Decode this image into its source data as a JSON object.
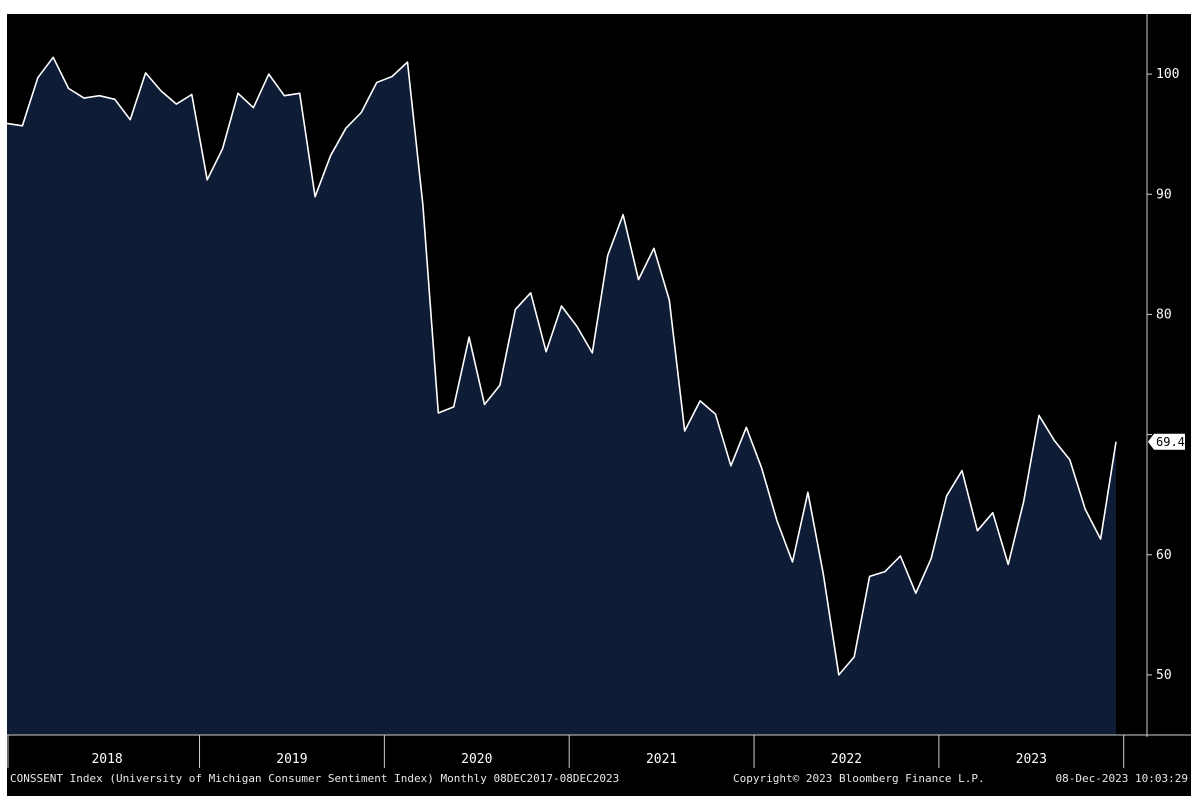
{
  "chart_data": {
    "type": "area",
    "series": [
      {
        "name": "CONSSENT Index",
        "values": [
          {
            "x": "2017-12",
            "y": 95.9
          },
          {
            "x": "2018-01",
            "y": 95.7
          },
          {
            "x": "2018-02",
            "y": 99.7
          },
          {
            "x": "2018-03",
            "y": 101.4
          },
          {
            "x": "2018-04",
            "y": 98.8
          },
          {
            "x": "2018-05",
            "y": 98.0
          },
          {
            "x": "2018-06",
            "y": 98.2
          },
          {
            "x": "2018-07",
            "y": 97.9
          },
          {
            "x": "2018-08",
            "y": 96.2
          },
          {
            "x": "2018-09",
            "y": 100.1
          },
          {
            "x": "2018-10",
            "y": 98.6
          },
          {
            "x": "2018-11",
            "y": 97.5
          },
          {
            "x": "2018-12",
            "y": 98.3
          },
          {
            "x": "2019-01",
            "y": 91.2
          },
          {
            "x": "2019-02",
            "y": 93.8
          },
          {
            "x": "2019-03",
            "y": 98.4
          },
          {
            "x": "2019-04",
            "y": 97.2
          },
          {
            "x": "2019-05",
            "y": 100.0
          },
          {
            "x": "2019-06",
            "y": 98.2
          },
          {
            "x": "2019-07",
            "y": 98.4
          },
          {
            "x": "2019-08",
            "y": 89.8
          },
          {
            "x": "2019-09",
            "y": 93.2
          },
          {
            "x": "2019-10",
            "y": 95.5
          },
          {
            "x": "2019-11",
            "y": 96.8
          },
          {
            "x": "2019-12",
            "y": 99.3
          },
          {
            "x": "2020-01",
            "y": 99.8
          },
          {
            "x": "2020-02",
            "y": 101.0
          },
          {
            "x": "2020-03",
            "y": 89.1
          },
          {
            "x": "2020-04",
            "y": 71.8
          },
          {
            "x": "2020-05",
            "y": 72.3
          },
          {
            "x": "2020-06",
            "y": 78.1
          },
          {
            "x": "2020-07",
            "y": 72.5
          },
          {
            "x": "2020-08",
            "y": 74.1
          },
          {
            "x": "2020-09",
            "y": 80.4
          },
          {
            "x": "2020-10",
            "y": 81.8
          },
          {
            "x": "2020-11",
            "y": 76.9
          },
          {
            "x": "2020-12",
            "y": 80.7
          },
          {
            "x": "2021-01",
            "y": 79.0
          },
          {
            "x": "2021-02",
            "y": 76.8
          },
          {
            "x": "2021-03",
            "y": 84.9
          },
          {
            "x": "2021-04",
            "y": 88.3
          },
          {
            "x": "2021-05",
            "y": 82.9
          },
          {
            "x": "2021-06",
            "y": 85.5
          },
          {
            "x": "2021-07",
            "y": 81.2
          },
          {
            "x": "2021-08",
            "y": 70.3
          },
          {
            "x": "2021-09",
            "y": 72.8
          },
          {
            "x": "2021-10",
            "y": 71.7
          },
          {
            "x": "2021-11",
            "y": 67.4
          },
          {
            "x": "2021-12",
            "y": 70.6
          },
          {
            "x": "2022-01",
            "y": 67.2
          },
          {
            "x": "2022-02",
            "y": 62.8
          },
          {
            "x": "2022-03",
            "y": 59.4
          },
          {
            "x": "2022-04",
            "y": 65.2
          },
          {
            "x": "2022-05",
            "y": 58.4
          },
          {
            "x": "2022-06",
            "y": 50.0
          },
          {
            "x": "2022-07",
            "y": 51.5
          },
          {
            "x": "2022-08",
            "y": 58.2
          },
          {
            "x": "2022-09",
            "y": 58.6
          },
          {
            "x": "2022-10",
            "y": 59.9
          },
          {
            "x": "2022-11",
            "y": 56.8
          },
          {
            "x": "2022-12",
            "y": 59.7
          },
          {
            "x": "2023-01",
            "y": 64.9
          },
          {
            "x": "2023-02",
            "y": 67.0
          },
          {
            "x": "2023-03",
            "y": 62.0
          },
          {
            "x": "2023-04",
            "y": 63.5
          },
          {
            "x": "2023-05",
            "y": 59.2
          },
          {
            "x": "2023-06",
            "y": 64.4
          },
          {
            "x": "2023-07",
            "y": 71.6
          },
          {
            "x": "2023-08",
            "y": 69.5
          },
          {
            "x": "2023-09",
            "y": 67.9
          },
          {
            "x": "2023-10",
            "y": 63.8
          },
          {
            "x": "2023-11",
            "y": 61.3
          },
          {
            "x": "2023-12",
            "y": 69.4
          }
        ]
      }
    ],
    "x_tick_labels": [
      "2018",
      "2019",
      "2020",
      "2021",
      "2022",
      "2023"
    ],
    "y_ticks": [
      50,
      60,
      70,
      80,
      90,
      100
    ],
    "y_tick_labels": [
      "50",
      "60",
      "",
      "80",
      "90",
      "100"
    ],
    "ylim": [
      45,
      105
    ],
    "last_value_label": "69.4",
    "grid": false,
    "title": "",
    "xlabel": "",
    "ylabel": "",
    "colors": {
      "background": "#000000",
      "fill": "#0f1c36",
      "line": "#ffffff",
      "axis": "#cfcfcf",
      "text": "#ffffff"
    }
  },
  "footer": {
    "left": "CONSSENT Index (University of Michigan Consumer Sentiment Index)  Monthly 08DEC2017-08DEC2023",
    "center": "Copyright© 2023 Bloomberg Finance L.P.",
    "right": "08-Dec-2023 10:03:29"
  }
}
